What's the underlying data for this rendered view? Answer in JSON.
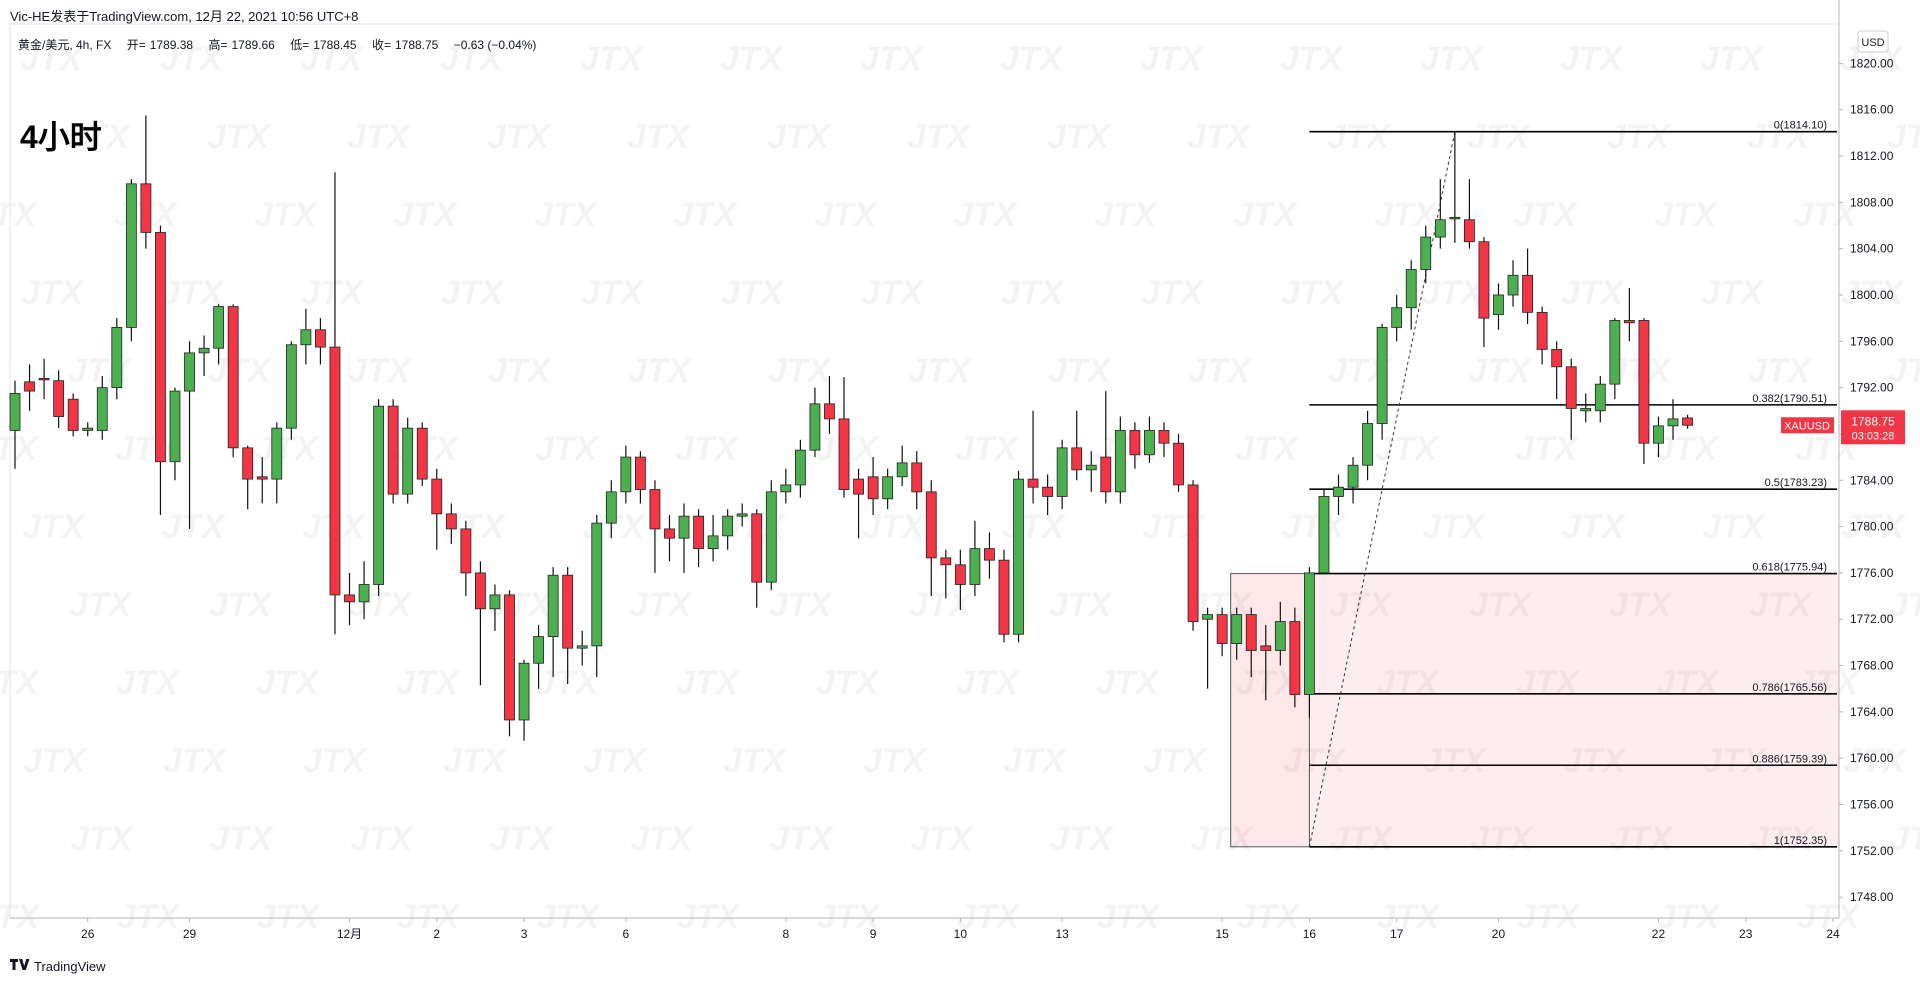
{
  "header": {
    "author_line": "Vic-HE发表于TradingView.com, 12月 22, 2021 10:56 UTC+8",
    "symbol": "黄金/美元, 4h, FX",
    "ohlc": [
      {
        "label": "开=",
        "value": 1789.38
      },
      {
        "label": "高=",
        "value": 1789.66
      },
      {
        "label": "低=",
        "value": 1788.45
      },
      {
        "label": "收=",
        "value": 1788.75
      }
    ],
    "change": "−0.63 (−0.04%)"
  },
  "brand": "TradingView",
  "watermark": "JTX",
  "chart_data": {
    "type": "candlestick",
    "title": "4小时",
    "currency": "USD",
    "categories": [
      null,
      null,
      null,
      null,
      null,
      "26",
      null,
      null,
      null,
      null,
      null,
      null,
      "29",
      null,
      null,
      null,
      null,
      null,
      null,
      null,
      null,
      null,
      null,
      "12月",
      null,
      null,
      null,
      null,
      null,
      "2",
      null,
      null,
      null,
      null,
      null,
      "3",
      null,
      null,
      null,
      null,
      null,
      null,
      "6",
      null,
      null,
      null,
      null,
      null,
      null,
      null,
      null,
      null,
      null,
      "8",
      null,
      null,
      null,
      null,
      null,
      "9",
      null,
      null,
      null,
      null,
      null,
      "10",
      null,
      null,
      null,
      null,
      null,
      null,
      "13",
      null,
      null,
      null,
      null,
      null,
      null,
      null,
      null,
      null,
      null,
      "15",
      null,
      null,
      null,
      null,
      null,
      "16",
      null,
      null,
      null,
      null,
      null,
      "17",
      null,
      null,
      null,
      null,
      null,
      null,
      "20",
      null,
      null,
      null,
      null,
      null,
      null,
      null,
      null,
      null,
      null,
      "22",
      null,
      null,
      null,
      null,
      null,
      "23",
      null,
      null,
      null,
      null,
      null,
      "24"
    ],
    "open": [
      1788.3,
      1792.5,
      1792.8,
      1792.6,
      1791,
      1788.3,
      1788.3,
      1792,
      1797.2,
      1809.6,
      1805.4,
      1785.6,
      1791.7,
      1795,
      1795.4,
      1799,
      1786.8,
      1784.3,
      1784.1,
      1788.5,
      1795.7,
      1797,
      1795.5,
      1774.1,
      1773.5,
      1775,
      1790.4,
      1782.8,
      1788.5,
      1784.1,
      1781.1,
      1779.8,
      1776,
      1772.9,
      1774.1,
      1763.3,
      1768.2,
      1770.5,
      1775.8,
      1769.5,
      1769.7,
      1780.3,
      1783,
      1786,
      1783.2,
      1779.8,
      1779,
      1780.9,
      1778.1,
      1779.2,
      1780.9,
      1781.1,
      1775.2,
      1783,
      1783.6,
      1786.6,
      1790.6,
      1789.3,
      1784.1,
      1784.3,
      1782.4,
      1784.3,
      1785.5,
      1783,
      1777.3,
      1776.7,
      1775,
      1778.1,
      1777.1,
      1770.7,
      1784.1,
      1783.4,
      1782.6,
      1786.8,
      1784.9,
      1786,
      1783,
      1788.3,
      1786.2,
      1788.3,
      1787.2,
      1783.6,
      1772,
      1772.4,
      1769.9,
      1772.4,
      1769.7,
      1769.3,
      1771.8,
      1765.5,
      1776,
      1782.6,
      1783.4,
      1785.3,
      1788.9,
      1797.2,
      1798.9,
      1802.2,
      1805,
      1806.6,
      1806.5,
      1804.6,
      1798.3,
      1800,
      1801.7,
      1798.5,
      1795.3,
      1793.8,
      1790,
      1790,
      1792.3,
      1797.8,
      1797.8,
      1787.2,
      1788.7,
      1789.38,
      null,
      null,
      null,
      null,
      null,
      null,
      null,
      null,
      null,
      null
    ],
    "high": [
      1792.6,
      1794,
      1794.5,
      1793.5,
      1791.5,
      1789,
      1793,
      1798,
      1810,
      1815.5,
      1806,
      1792,
      1796,
      1796.5,
      1799.2,
      1799.2,
      1787,
      1786,
      1789,
      1796,
      1798.8,
      1798,
      1810.6,
      1776,
      1777,
      1791,
      1791,
      1789.4,
      1789,
      1785,
      1782,
      1780.5,
      1777,
      1775,
      1774.5,
      1768.5,
      1771.5,
      1776.5,
      1776.5,
      1771,
      1781,
      1784,
      1787,
      1786.5,
      1784,
      1781,
      1782,
      1781.5,
      1781,
      1781.5,
      1782,
      1781.5,
      1784,
      1785,
      1787.5,
      1792,
      1793,
      1792.9,
      1785,
      1786,
      1785,
      1787,
      1786.5,
      1784,
      1778,
      1778,
      1780.5,
      1779.5,
      1778,
      1784.8,
      1790,
      1784.5,
      1787.5,
      1790,
      1786.5,
      1791.7,
      1789.5,
      1789,
      1789.5,
      1789,
      1788,
      1784,
      1773,
      1773,
      1773,
      1773,
      1771.5,
      1773.5,
      1773,
      1776.5,
      1783.2,
      1784.5,
      1786,
      1790,
      1797.5,
      1800,
      1803,
      1806,
      1810,
      1814.1,
      1810,
      1805,
      1801,
      1803,
      1804,
      1799,
      1796,
      1794.5,
      1791.5,
      1793,
      1798,
      1800.6,
      1798,
      1789.5,
      1791,
      1789.66,
      null,
      null,
      null,
      null,
      null,
      null,
      null,
      null,
      null,
      null
    ],
    "low": [
      1785,
      1790,
      1791,
      1788.5,
      1787.8,
      1787.8,
      1787.5,
      1791,
      1796,
      1804,
      1781,
      1784,
      1779.8,
      1793,
      1794,
      1786,
      1781.5,
      1782,
      1782,
      1787.5,
      1794,
      1794,
      1770.7,
      1771.5,
      1772,
      1774,
      1782,
      1782,
      1783.5,
      1778,
      1778.5,
      1774,
      1766.3,
      1771,
      1761.9,
      1761.5,
      1766,
      1767,
      1766.4,
      1768,
      1767,
      1779,
      1782,
      1782,
      1776,
      1777,
      1776,
      1776.5,
      1777,
      1778,
      1780,
      1773,
      1774.5,
      1782,
      1782.5,
      1786,
      1788,
      1782.5,
      1779,
      1781,
      1781.5,
      1783.5,
      1781.5,
      1774,
      1773.8,
      1772.8,
      1774,
      1775.5,
      1770,
      1770,
      1782,
      1781,
      1781.5,
      1784,
      1783,
      1782,
      1782,
      1785,
      1785.5,
      1786,
      1783,
      1771,
      1766,
      1768.8,
      1768.5,
      1767,
      1765,
      1768,
      1764.4,
      1763.5,
      1775.9,
      1781,
      1782,
      1784,
      1787.5,
      1796,
      1797,
      1801,
      1804,
      1804.5,
      1804,
      1795.5,
      1797,
      1799,
      1797.5,
      1794,
      1791,
      1787.5,
      1789,
      1789,
      1791,
      1796,
      1785.4,
      1786,
      1787.5,
      1788.45,
      null,
      null,
      null,
      null,
      null,
      null,
      null,
      null,
      null,
      null
    ],
    "close": [
      1791.5,
      1791.7,
      1792.7,
      1789.5,
      1788.3,
      1788.5,
      1792,
      1797.2,
      1809.6,
      1805.4,
      1785.6,
      1791.7,
      1795,
      1795.4,
      1799,
      1786.8,
      1784.1,
      1784.1,
      1788.5,
      1795.7,
      1797,
      1795.5,
      1774.1,
      1773.5,
      1775,
      1790.4,
      1782.8,
      1788.5,
      1784.1,
      1781.1,
      1779.8,
      1776,
      1772.9,
      1774.1,
      1763.3,
      1768.2,
      1770.5,
      1775.8,
      1769.5,
      1769.7,
      1780.3,
      1783,
      1786,
      1783.2,
      1779.8,
      1779,
      1780.9,
      1778.1,
      1779.2,
      1780.9,
      1781.1,
      1775.2,
      1783,
      1783.6,
      1786.6,
      1790.6,
      1789.3,
      1783.2,
      1782.8,
      1782.4,
      1784.3,
      1785.5,
      1783,
      1777.3,
      1776.7,
      1775,
      1778.1,
      1777.1,
      1770.7,
      1784.1,
      1783.4,
      1782.6,
      1786.8,
      1784.9,
      1785.3,
      1783,
      1788.3,
      1786.2,
      1788.3,
      1787.2,
      1783.6,
      1771.8,
      1772.4,
      1769.9,
      1772.4,
      1769.3,
      1769.3,
      1771.8,
      1765.5,
      1776,
      1782.6,
      1783.4,
      1785.3,
      1788.9,
      1797.2,
      1798.9,
      1802.2,
      1805,
      1806.5,
      1806.7,
      1804.6,
      1798,
      1800,
      1801.7,
      1798.5,
      1795.3,
      1793.8,
      1790.2,
      1790.2,
      1792.3,
      1797.8,
      1797.6,
      1787.2,
      1788.7,
      1789.3,
      1788.75,
      null,
      null,
      null,
      null,
      null,
      null,
      null,
      null,
      null,
      null
    ],
    "up_color": "#4caf50",
    "down_color": "#f23645",
    "ylim": [
      1746.2,
      1823.4
    ],
    "yticks": [
      {
        "value": 1748,
        "label": "1748.00"
      },
      {
        "value": 1752,
        "label": "1752.00"
      },
      {
        "value": 1756,
        "label": "1756.00"
      },
      {
        "value": 1760,
        "label": "1760.00"
      },
      {
        "value": 1764,
        "label": "1764.00"
      },
      {
        "value": 1768,
        "label": "1768.00"
      },
      {
        "value": 1772,
        "label": "1772.00"
      },
      {
        "value": 1776,
        "label": "1776.00"
      },
      {
        "value": 1780,
        "label": "1780.00"
      },
      {
        "value": 1784,
        "label": "1784.00"
      },
      {
        "value": 1788,
        "label": "1788.00"
      },
      {
        "value": 1792,
        "label": "1792.00"
      },
      {
        "value": 1796,
        "label": "1796.00"
      },
      {
        "value": 1800,
        "label": "1800.00"
      },
      {
        "value": 1804,
        "label": "1804.00"
      },
      {
        "value": 1808,
        "label": "1808.00"
      },
      {
        "value": 1812,
        "label": "1812.00"
      },
      {
        "value": 1816,
        "label": "1816.00"
      },
      {
        "value": 1820,
        "label": "1820.00"
      }
    ],
    "grid": false,
    "fib_levels": [
      {
        "label": "0(1814.10)",
        "value": 1814.1
      },
      {
        "label": "0.382(1790.51)",
        "value": 1790.51
      },
      {
        "label": "0.5(1783.23)",
        "value": 1783.23
      },
      {
        "label": "0.618(1775.94)",
        "value": 1775.94
      },
      {
        "label": "0.786(1765.56)",
        "value": 1765.56
      },
      {
        "label": "0.886(1759.39)",
        "value": 1759.39
      },
      {
        "label": "1(1752.35)",
        "value": 1752.35
      }
    ],
    "last_price": {
      "symbol": "XAUUSD",
      "value": 1788.75,
      "countdown": "03:03:28",
      "color": "#f23645"
    }
  }
}
